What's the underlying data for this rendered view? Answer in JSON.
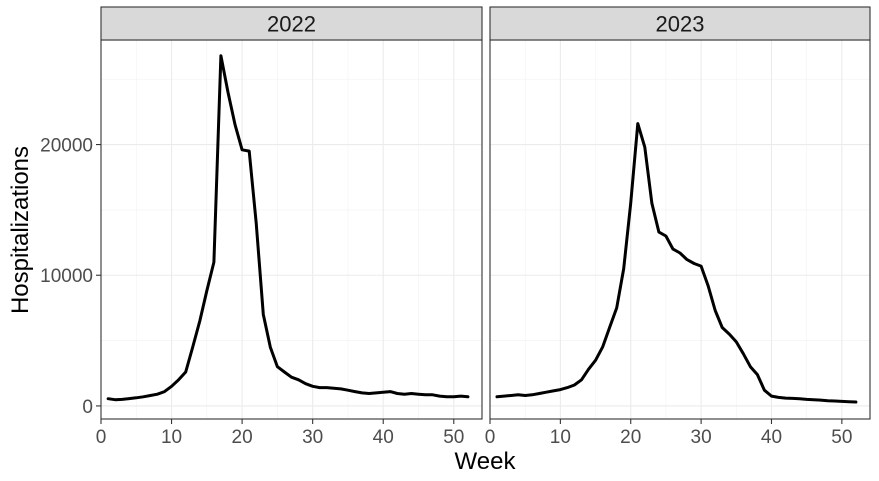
{
  "chart_data": {
    "type": "line",
    "facet_var": "year",
    "xlabel": "Week",
    "ylabel": "Hospitalizations",
    "xlim": [
      0,
      54
    ],
    "ylim": [
      -1000,
      28000
    ],
    "xticks": [
      0,
      10,
      20,
      30,
      40,
      50
    ],
    "yticks": [
      0,
      10000,
      20000
    ],
    "ytick_labels": [
      "0",
      "10000",
      "20000"
    ],
    "grid": true,
    "line_color": "#000000",
    "panels": [
      {
        "label": "2022",
        "x": [
          1,
          2,
          3,
          4,
          5,
          6,
          7,
          8,
          9,
          10,
          11,
          12,
          13,
          14,
          15,
          16,
          17,
          18,
          19,
          20,
          21,
          22,
          23,
          24,
          25,
          26,
          27,
          28,
          29,
          30,
          31,
          32,
          33,
          34,
          35,
          36,
          37,
          38,
          39,
          40,
          41,
          42,
          43,
          44,
          45,
          46,
          47,
          48,
          49,
          50,
          51,
          52
        ],
        "y": [
          550,
          480,
          500,
          560,
          620,
          700,
          800,
          900,
          1100,
          1500,
          2000,
          2600,
          4500,
          6500,
          8800,
          11000,
          26800,
          24000,
          21500,
          19600,
          19500,
          14000,
          7000,
          4500,
          3000,
          2600,
          2200,
          2000,
          1700,
          1500,
          1400,
          1400,
          1350,
          1300,
          1200,
          1100,
          1000,
          950,
          1000,
          1050,
          1100,
          950,
          900,
          950,
          900,
          850,
          850,
          750,
          700,
          700,
          750,
          700
        ]
      },
      {
        "label": "2023",
        "x": [
          1,
          2,
          3,
          4,
          5,
          6,
          7,
          8,
          9,
          10,
          11,
          12,
          13,
          14,
          15,
          16,
          17,
          18,
          19,
          20,
          21,
          22,
          23,
          24,
          25,
          26,
          27,
          28,
          29,
          30,
          31,
          32,
          33,
          34,
          35,
          36,
          37,
          38,
          39,
          40,
          41,
          42,
          43,
          44,
          45,
          46,
          47,
          48,
          49,
          50,
          51,
          52
        ],
        "y": [
          700,
          750,
          800,
          850,
          800,
          850,
          950,
          1050,
          1150,
          1250,
          1400,
          1600,
          2000,
          2800,
          3500,
          4500,
          6000,
          7500,
          10500,
          15500,
          21600,
          19800,
          15500,
          13300,
          13000,
          12000,
          11700,
          11200,
          10900,
          10700,
          9200,
          7300,
          6000,
          5500,
          4900,
          4000,
          3000,
          2400,
          1200,
          750,
          650,
          600,
          580,
          550,
          500,
          470,
          450,
          400,
          380,
          350,
          320,
          300
        ]
      }
    ]
  }
}
